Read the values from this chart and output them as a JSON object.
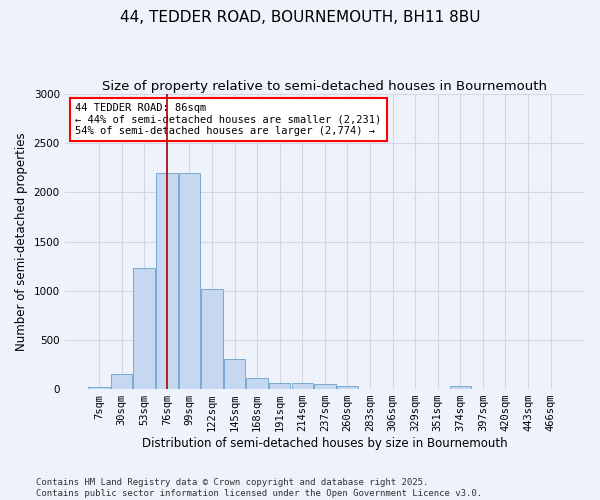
{
  "title_line1": "44, TEDDER ROAD, BOURNEMOUTH, BH11 8BU",
  "title_line2": "Size of property relative to semi-detached houses in Bournemouth",
  "xlabel": "Distribution of semi-detached houses by size in Bournemouth",
  "ylabel": "Number of semi-detached properties",
  "categories": [
    "7sqm",
    "30sqm",
    "53sqm",
    "76sqm",
    "99sqm",
    "122sqm",
    "145sqm",
    "168sqm",
    "191sqm",
    "214sqm",
    "237sqm",
    "260sqm",
    "283sqm",
    "306sqm",
    "329sqm",
    "351sqm",
    "374sqm",
    "397sqm",
    "420sqm",
    "443sqm",
    "466sqm"
  ],
  "values": [
    20,
    150,
    1230,
    2200,
    2200,
    1020,
    310,
    110,
    65,
    60,
    50,
    35,
    0,
    0,
    0,
    0,
    30,
    0,
    0,
    0,
    0
  ],
  "bar_color": "#c5d8f0",
  "bar_edge_color": "#7aaad0",
  "background_color": "#eef2fb",
  "grid_color": "#d0d8e8",
  "vline_color": "#aa0000",
  "vline_x_index": 3.0,
  "annotation_title": "44 TEDDER ROAD: 86sqm",
  "annotation_line1": "← 44% of semi-detached houses are smaller (2,231)",
  "annotation_line2": "54% of semi-detached houses are larger (2,774) →",
  "annotation_box_facecolor": "white",
  "annotation_box_edgecolor": "red",
  "ylim": [
    0,
    3000
  ],
  "yticks": [
    0,
    500,
    1000,
    1500,
    2000,
    2500,
    3000
  ],
  "footnote1": "Contains HM Land Registry data © Crown copyright and database right 2025.",
  "footnote2": "Contains public sector information licensed under the Open Government Licence v3.0.",
  "title_fontsize": 11,
  "subtitle_fontsize": 9.5,
  "axis_label_fontsize": 8.5,
  "tick_fontsize": 7.5,
  "annotation_fontsize": 7.5,
  "footnote_fontsize": 6.5
}
